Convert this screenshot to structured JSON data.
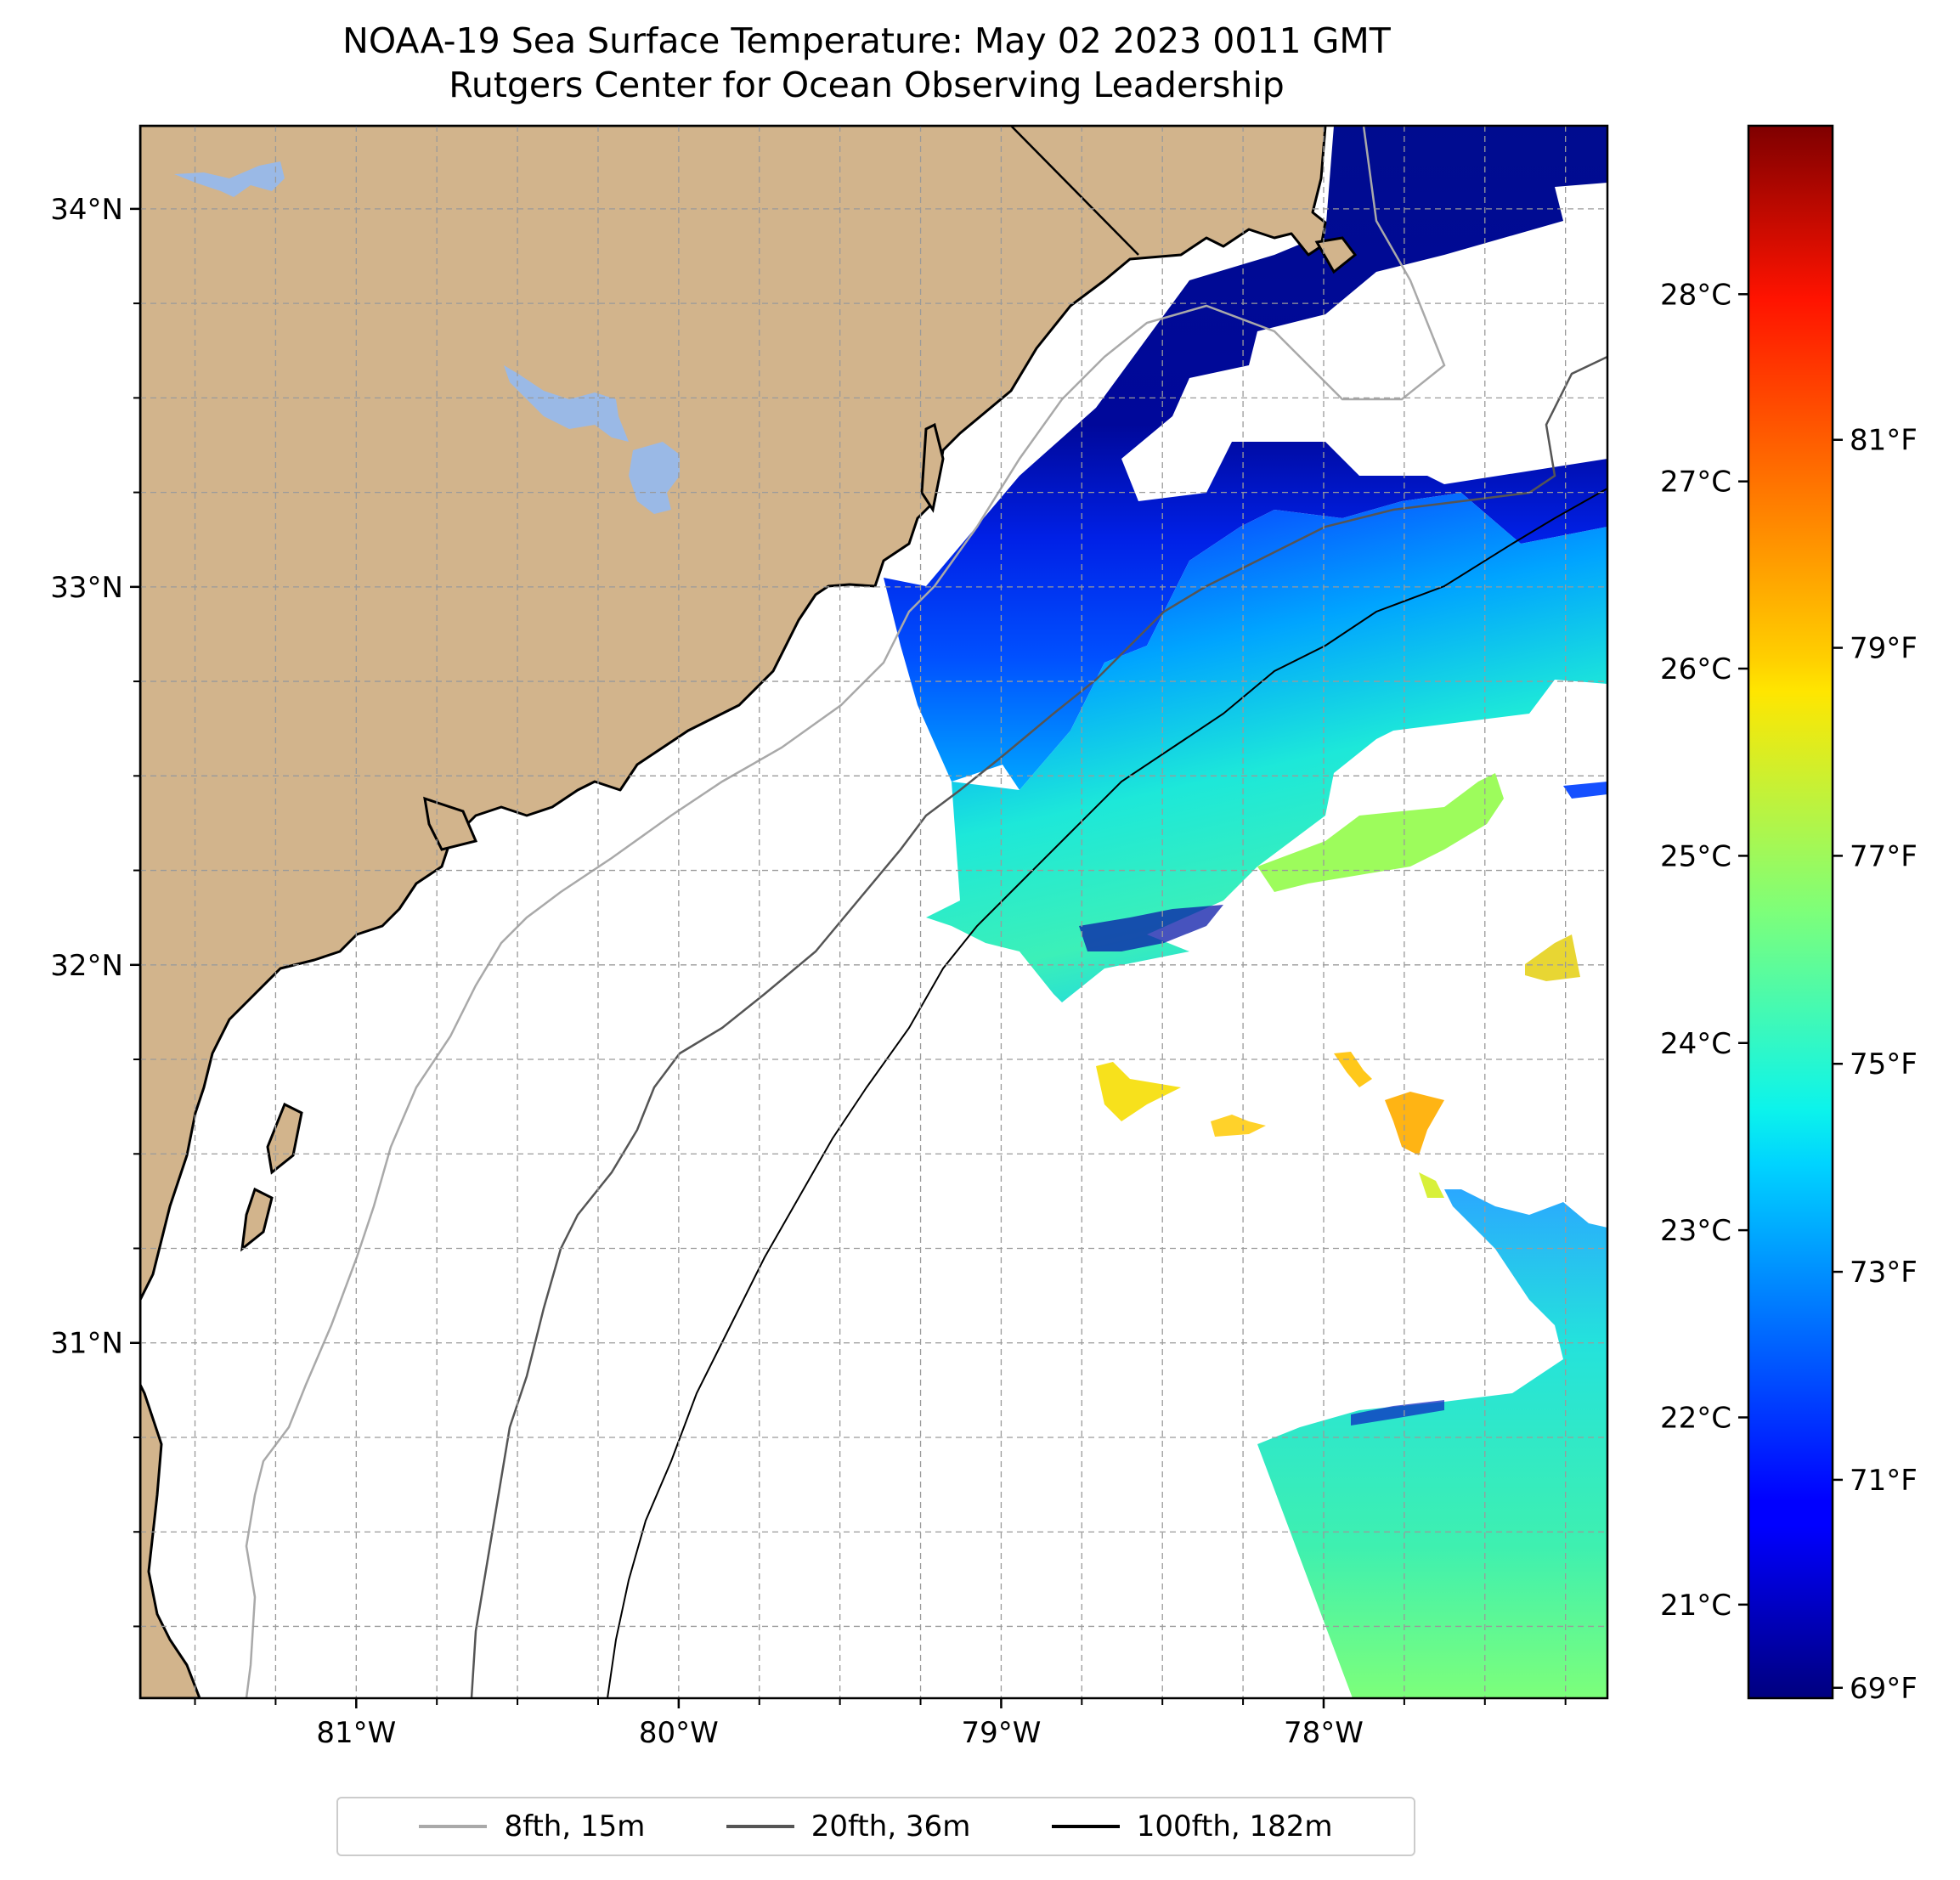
{
  "title": {
    "line1": "NOAA-19 Sea Surface Temperature: May 02 2023 0011 GMT",
    "line2": "Rutgers Center for Ocean Observing Leadership"
  },
  "map": {
    "extent": {
      "lon_min": -81.67,
      "lon_max": -77.12,
      "lat_min": 30.06,
      "lat_max": 34.22
    },
    "lat_ticks": [
      {
        "value": 34,
        "label": "34°N"
      },
      {
        "value": 33,
        "label": "33°N"
      },
      {
        "value": 32,
        "label": "32°N"
      },
      {
        "value": 31,
        "label": "31°N"
      }
    ],
    "lon_ticks": [
      {
        "value": -81,
        "label": "81°W"
      },
      {
        "value": -80,
        "label": "80°W"
      },
      {
        "value": -79,
        "label": "79°W"
      },
      {
        "value": -78,
        "label": "78°W"
      }
    ],
    "gridlines": "dashed",
    "land_color": "#d2b48c",
    "lake_color": "#9ab9e6"
  },
  "colorbar": {
    "colormap": "jet",
    "range_c": [
      20.5,
      28.9
    ],
    "celsius_ticks": [
      {
        "value": 28,
        "label": "28°C"
      },
      {
        "value": 27,
        "label": "27°C"
      },
      {
        "value": 26,
        "label": "26°C"
      },
      {
        "value": 25,
        "label": "25°C"
      },
      {
        "value": 24,
        "label": "24°C"
      },
      {
        "value": 23,
        "label": "23°C"
      },
      {
        "value": 22,
        "label": "22°C"
      },
      {
        "value": 21,
        "label": "21°C"
      }
    ],
    "fahrenheit_ticks": [
      {
        "value": 81,
        "label": "81°F"
      },
      {
        "value": 79,
        "label": "79°F"
      },
      {
        "value": 77,
        "label": "77°F"
      },
      {
        "value": 75,
        "label": "75°F"
      },
      {
        "value": 73,
        "label": "73°F"
      },
      {
        "value": 71,
        "label": "71°F"
      },
      {
        "value": 69,
        "label": "69°F"
      }
    ]
  },
  "legend": {
    "items": [
      {
        "label": "8fth, 15m",
        "color": "#a9a9a9"
      },
      {
        "label": "20fth, 36m",
        "color": "#555555"
      },
      {
        "label": "100fth, 182m",
        "color": "#000000"
      }
    ]
  }
}
